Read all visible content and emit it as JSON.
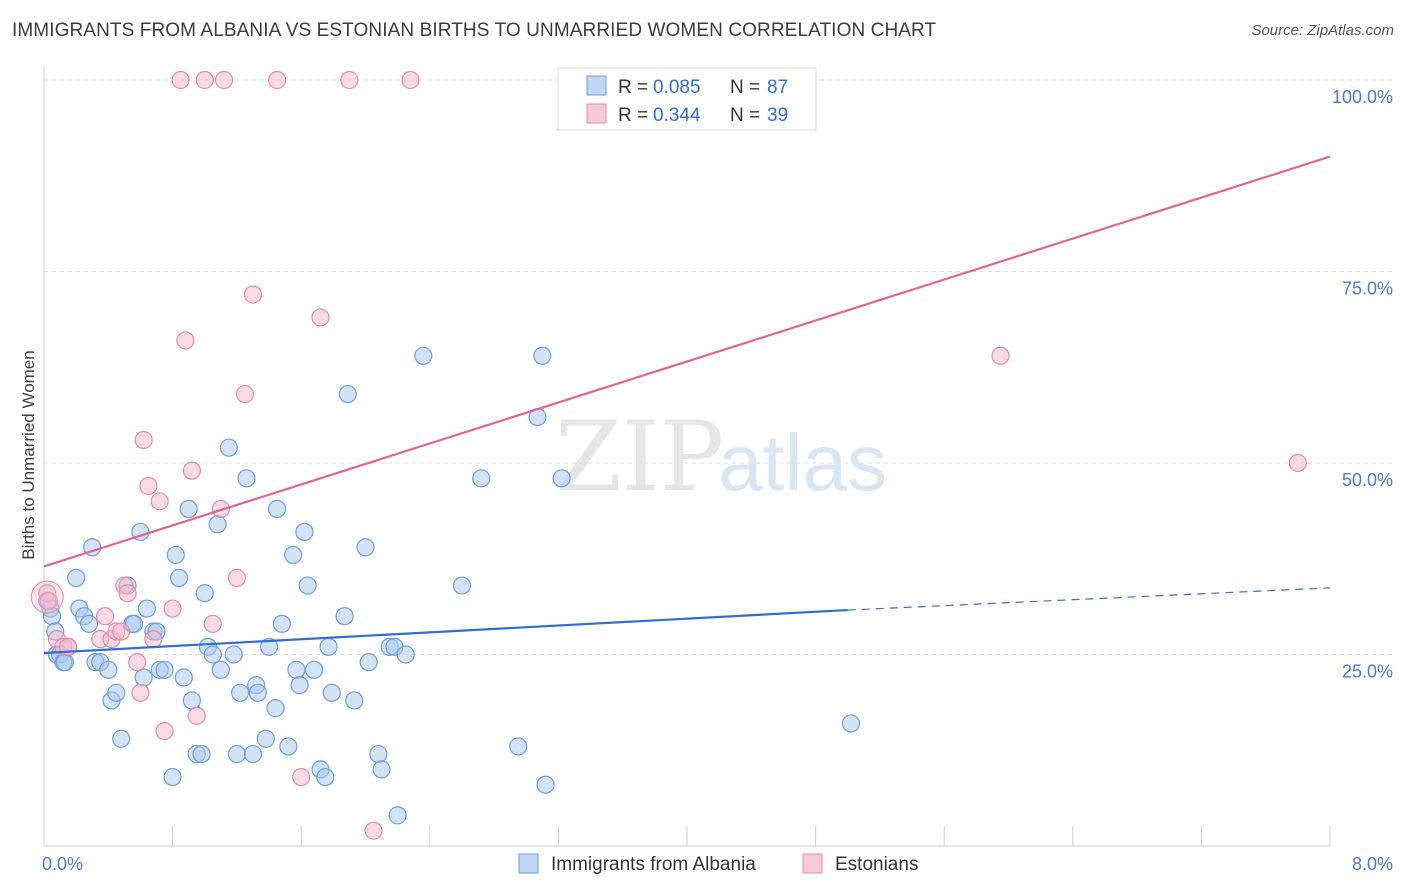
{
  "title": "IMMIGRANTS FROM ALBANIA VS ESTONIAN BIRTHS TO UNMARRIED WOMEN CORRELATION CHART",
  "source": "Source: ZipAtlas.com",
  "watermark": {
    "zip": "ZIP",
    "atlas": "atlas"
  },
  "colors": {
    "blue": "#a8c8f0",
    "blue_stroke": "#6f9fd8",
    "blue_line": "#2f6fcf",
    "pink": "#f6b8cb",
    "pink_stroke": "#e58aa8",
    "pink_line": "#e06690",
    "tick_label": "#4a7cc9",
    "grid": "#dddddd"
  },
  "legend_top": [
    {
      "r_label": "R = ",
      "r_value": "0.085",
      "n_label": "N = ",
      "n_value": "87",
      "color": "blue"
    },
    {
      "r_label": "R = ",
      "r_value": "0.344",
      "n_label": "N = ",
      "n_value": "39",
      "color": "pink"
    }
  ],
  "chart_data": {
    "type": "scatter",
    "xlabel": "",
    "ylabel": "Births to Unmarried Women",
    "xlim": [
      0,
      8
    ],
    "ylim": [
      0,
      100
    ],
    "x_ticks_labels": [
      {
        "value": 0,
        "label": "0.0%"
      },
      {
        "value": 8,
        "label": "8.0%"
      }
    ],
    "y_ticks_labels": [
      {
        "value": 25,
        "label": "25.0%"
      },
      {
        "value": 50,
        "label": "50.0%"
      },
      {
        "value": 75,
        "label": "75.0%"
      },
      {
        "value": 100,
        "label": "100.0%"
      }
    ],
    "grid": true,
    "legend_position": "bottom-center",
    "series": [
      {
        "name": "Immigrants from Albania",
        "color": "blue",
        "trend": {
          "x0": 0,
          "y0": 25.2,
          "x1": 5.0,
          "y1": 30.8,
          "dash_to_x": 8.0,
          "dash_y": 33.7
        },
        "points": [
          [
            0.02,
            32
          ],
          [
            0.04,
            31
          ],
          [
            0.05,
            30
          ],
          [
            0.07,
            28
          ],
          [
            0.08,
            25
          ],
          [
            0.1,
            25
          ],
          [
            0.12,
            24
          ],
          [
            0.13,
            24
          ],
          [
            0.2,
            35
          ],
          [
            0.22,
            31
          ],
          [
            0.25,
            30
          ],
          [
            0.28,
            29
          ],
          [
            0.3,
            39
          ],
          [
            0.32,
            24
          ],
          [
            0.35,
            24
          ],
          [
            0.4,
            23
          ],
          [
            0.42,
            19
          ],
          [
            0.45,
            20
          ],
          [
            0.48,
            14
          ],
          [
            0.52,
            34
          ],
          [
            0.55,
            29
          ],
          [
            0.56,
            29
          ],
          [
            0.6,
            41
          ],
          [
            0.62,
            22
          ],
          [
            0.64,
            31
          ],
          [
            0.68,
            28
          ],
          [
            0.7,
            28
          ],
          [
            0.72,
            23
          ],
          [
            0.75,
            23
          ],
          [
            0.8,
            9
          ],
          [
            0.82,
            38
          ],
          [
            0.84,
            35
          ],
          [
            0.87,
            22
          ],
          [
            0.9,
            44
          ],
          [
            0.92,
            19
          ],
          [
            0.95,
            12
          ],
          [
            0.98,
            12
          ],
          [
            1.0,
            33
          ],
          [
            1.02,
            26
          ],
          [
            1.05,
            25
          ],
          [
            1.08,
            42
          ],
          [
            1.1,
            23
          ],
          [
            1.15,
            52
          ],
          [
            1.18,
            25
          ],
          [
            1.2,
            12
          ],
          [
            1.22,
            20
          ],
          [
            1.26,
            48
          ],
          [
            1.3,
            12
          ],
          [
            1.32,
            21
          ],
          [
            1.33,
            20
          ],
          [
            1.38,
            14
          ],
          [
            1.4,
            26
          ],
          [
            1.44,
            18
          ],
          [
            1.45,
            44
          ],
          [
            1.48,
            29
          ],
          [
            1.52,
            13
          ],
          [
            1.55,
            38
          ],
          [
            1.57,
            23
          ],
          [
            1.59,
            21
          ],
          [
            1.62,
            41
          ],
          [
            1.64,
            34
          ],
          [
            1.68,
            23
          ],
          [
            1.72,
            10
          ],
          [
            1.75,
            9
          ],
          [
            1.77,
            26
          ],
          [
            1.79,
            20
          ],
          [
            1.87,
            30
          ],
          [
            1.89,
            59
          ],
          [
            1.93,
            19
          ],
          [
            2.0,
            39
          ],
          [
            2.02,
            24
          ],
          [
            2.08,
            12
          ],
          [
            2.1,
            10
          ],
          [
            2.15,
            26
          ],
          [
            2.18,
            26
          ],
          [
            2.2,
            4
          ],
          [
            2.25,
            25
          ],
          [
            2.36,
            64
          ],
          [
            2.6,
            34
          ],
          [
            2.72,
            48
          ],
          [
            2.95,
            13
          ],
          [
            3.07,
            56
          ],
          [
            3.1,
            64
          ],
          [
            3.12,
            8
          ],
          [
            3.22,
            48
          ],
          [
            5.02,
            16
          ],
          [
            0.15,
            26
          ]
        ]
      },
      {
        "name": "Estonians",
        "color": "pink",
        "trend": {
          "x0": 0,
          "y0": 36.5,
          "x1": 8.0,
          "y1": 90.0
        },
        "points": [
          [
            0.02,
            33
          ],
          [
            0.03,
            32
          ],
          [
            0.08,
            27
          ],
          [
            0.12,
            26
          ],
          [
            0.15,
            26
          ],
          [
            0.35,
            27
          ],
          [
            0.38,
            30
          ],
          [
            0.42,
            27
          ],
          [
            0.45,
            28
          ],
          [
            0.48,
            28
          ],
          [
            0.5,
            34
          ],
          [
            0.52,
            33
          ],
          [
            0.58,
            24
          ],
          [
            0.6,
            20
          ],
          [
            0.62,
            53
          ],
          [
            0.65,
            47
          ],
          [
            0.68,
            27
          ],
          [
            0.72,
            45
          ],
          [
            0.75,
            15
          ],
          [
            0.8,
            31
          ],
          [
            0.85,
            100
          ],
          [
            0.88,
            66
          ],
          [
            0.92,
            49
          ],
          [
            0.95,
            17
          ],
          [
            1.0,
            100
          ],
          [
            1.05,
            29
          ],
          [
            1.1,
            44
          ],
          [
            1.2,
            35
          ],
          [
            1.25,
            59
          ],
          [
            1.3,
            72
          ],
          [
            1.45,
            100
          ],
          [
            1.6,
            9
          ],
          [
            1.72,
            69
          ],
          [
            1.9,
            100
          ],
          [
            2.05,
            2
          ],
          [
            2.28,
            100
          ],
          [
            5.95,
            64
          ],
          [
            7.8,
            50
          ],
          [
            1.12,
            100
          ]
        ]
      }
    ]
  }
}
